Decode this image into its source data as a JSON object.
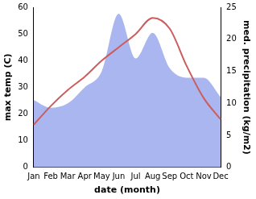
{
  "chart_data": {
    "type": "line",
    "categories": [
      "Jan",
      "Feb",
      "Mar",
      "Apr",
      "May",
      "Jun",
      "Jul",
      "Aug",
      "Sep",
      "Oct",
      "Nov",
      "Dec"
    ],
    "x_label": "date (month)",
    "y_label": "max temp (C)",
    "y2_label": "med. precipitation (kg/m2)",
    "series": [
      {
        "name": "med. precipitation",
        "type": "area",
        "axis": "y2",
        "color": "#a9b6f0",
        "values": [
          10.5,
          9.3,
          10,
          12.5,
          15,
          24,
          17,
          21,
          15.5,
          14,
          14,
          11
        ]
      },
      {
        "name": "max temp",
        "type": "line",
        "color": "#cd5c5c",
        "values": [
          16,
          23,
          29,
          34,
          40,
          45,
          50,
          56,
          52,
          38,
          26,
          18
        ]
      }
    ],
    "ylim": [
      0,
      60
    ],
    "yticks": [
      0,
      10,
      20,
      30,
      40,
      50,
      60
    ],
    "y2lim": [
      0,
      25
    ],
    "y2ticks": [
      0,
      5,
      10,
      15,
      20,
      25
    ],
    "grid": false
  }
}
